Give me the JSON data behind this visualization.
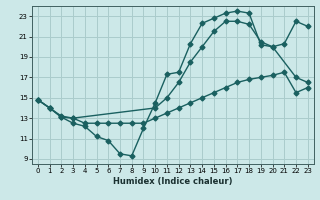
{
  "xlabel": "Humidex (Indice chaleur)",
  "bg_color": "#cce8e8",
  "grid_color": "#aacccc",
  "line_color": "#1a6060",
  "xlim": [
    -0.5,
    23.5
  ],
  "ylim": [
    8.5,
    24.0
  ],
  "xticks": [
    0,
    1,
    2,
    3,
    4,
    5,
    6,
    7,
    8,
    9,
    10,
    11,
    12,
    13,
    14,
    15,
    16,
    17,
    18,
    19,
    20,
    21,
    22,
    23
  ],
  "yticks": [
    9,
    11,
    13,
    15,
    17,
    19,
    21,
    23
  ],
  "line1_x": [
    0,
    1,
    2,
    3,
    4,
    5,
    6,
    7,
    8,
    9,
    10,
    11,
    12,
    13,
    14,
    15,
    16,
    17,
    18,
    19,
    20,
    21,
    22,
    23
  ],
  "line1_y": [
    14.8,
    14.0,
    13.2,
    13.0,
    12.5,
    12.5,
    12.5,
    12.5,
    12.5,
    12.5,
    13.0,
    13.5,
    14.0,
    14.5,
    15.0,
    15.5,
    16.0,
    16.5,
    16.8,
    17.0,
    17.2,
    17.5,
    15.5,
    16.0
  ],
  "line2_x": [
    0,
    1,
    2,
    3,
    4,
    5,
    6,
    7,
    8,
    9,
    10,
    11,
    12,
    13,
    14,
    15,
    16,
    17,
    18,
    19,
    20,
    22,
    23
  ],
  "line2_y": [
    14.8,
    14.0,
    13.1,
    12.5,
    12.2,
    11.2,
    10.8,
    9.5,
    9.3,
    12.0,
    14.5,
    17.3,
    17.5,
    20.3,
    22.3,
    22.8,
    23.3,
    23.5,
    23.3,
    20.2,
    20.0,
    17.0,
    16.5
  ],
  "line3_x": [
    0,
    1,
    2,
    3,
    10,
    11,
    12,
    13,
    14,
    15,
    16,
    17,
    18,
    19,
    20,
    21,
    22,
    23
  ],
  "line3_y": [
    14.8,
    14.0,
    13.1,
    13.0,
    14.0,
    15.0,
    16.5,
    18.5,
    20.0,
    21.5,
    22.5,
    22.5,
    22.2,
    20.5,
    20.0,
    20.3,
    22.5,
    22.0
  ]
}
